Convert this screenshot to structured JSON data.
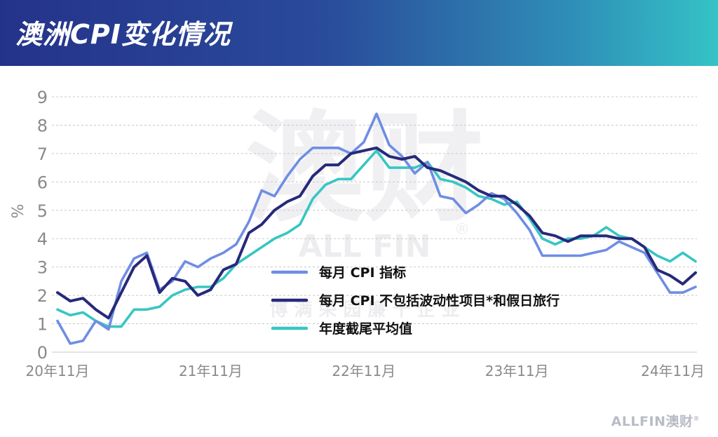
{
  "header": {
    "title": "澳洲CPI变化情况"
  },
  "brand": {
    "name": "ALLFIN澳财",
    "mark": "®"
  },
  "watermark": {
    "big": "澳财",
    "latin": "ALL FIN",
    "mark": "®",
    "slogan": "博 满 荣 园 廉 十 企 业"
  },
  "colors": {
    "series1": "#6f8de3",
    "series2": "#27297a",
    "series3": "#37c6c2",
    "grid": "#c8c8c8",
    "axis_text": "#8a8a8a"
  },
  "chart_data": {
    "type": "line",
    "title": "澳洲CPI变化情况",
    "ylabel": "%",
    "ylim": [
      0,
      9
    ],
    "yticks": [
      0,
      1,
      2,
      3,
      4,
      5,
      6,
      7,
      8,
      9
    ],
    "grid": "horizontal-dashed",
    "legend_position": "center-bottom",
    "xtick_labels": [
      "20年11月",
      "21年11月",
      "22年11月",
      "23年11月",
      "24年11月"
    ],
    "xtick_index": [
      0,
      12,
      24,
      36,
      48
    ],
    "series": [
      {
        "name": "每月 CPI 指标",
        "values": [
          1.1,
          0.3,
          0.4,
          1.1,
          0.8,
          2.5,
          3.3,
          3.5,
          2.2,
          2.5,
          3.2,
          3.0,
          3.3,
          3.5,
          3.8,
          4.6,
          5.7,
          5.5,
          6.2,
          6.8,
          7.2,
          7.2,
          7.2,
          7.0,
          7.4,
          8.4,
          7.3,
          6.9,
          6.3,
          6.7,
          5.5,
          5.4,
          4.9,
          5.2,
          5.6,
          5.4,
          4.9,
          4.3,
          3.4,
          3.4,
          3.4,
          3.4,
          3.5,
          3.6,
          3.9,
          3.7,
          3.5,
          2.8,
          2.1,
          2.1,
          2.3
        ]
      },
      {
        "name": "每月 CPI 不包括波动性项目*和假日旅行",
        "values": [
          2.1,
          1.8,
          1.9,
          1.5,
          1.2,
          2.1,
          3.0,
          3.4,
          2.1,
          2.6,
          2.5,
          2.0,
          2.2,
          2.9,
          3.1,
          4.2,
          4.5,
          5.0,
          5.3,
          5.5,
          6.2,
          6.6,
          6.6,
          7.0,
          7.1,
          7.2,
          6.9,
          6.8,
          6.9,
          6.5,
          6.4,
          6.2,
          6.0,
          5.7,
          5.5,
          5.5,
          5.2,
          4.8,
          4.2,
          4.1,
          3.9,
          4.1,
          4.1,
          4.1,
          4.0,
          4.0,
          3.7,
          2.9,
          2.7,
          2.4,
          2.8
        ]
      },
      {
        "name": "年度截尾平均值",
        "values": [
          1.5,
          1.3,
          1.4,
          1.1,
          0.9,
          0.9,
          1.5,
          1.5,
          1.6,
          2.0,
          2.2,
          2.3,
          2.3,
          2.6,
          3.1,
          3.4,
          3.7,
          4.0,
          4.2,
          4.5,
          5.4,
          5.9,
          6.1,
          6.1,
          6.6,
          7.1,
          6.5,
          6.5,
          6.5,
          6.7,
          6.1,
          6.0,
          5.8,
          5.5,
          5.4,
          5.2,
          5.3,
          4.7,
          4.0,
          3.8,
          4.0,
          4.0,
          4.1,
          4.4,
          4.1,
          4.0,
          3.7,
          3.4,
          3.2,
          3.5,
          3.2
        ]
      }
    ]
  }
}
